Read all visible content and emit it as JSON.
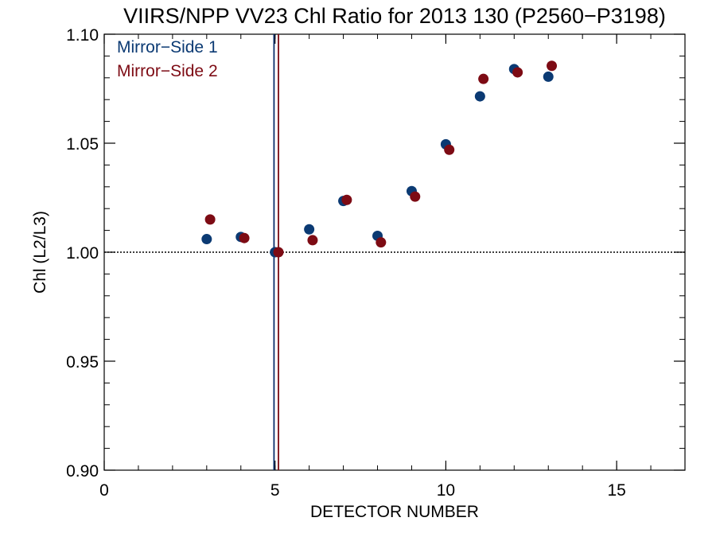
{
  "chart_data": {
    "type": "scatter",
    "title": "VIIRS/NPP VV23 Chl Ratio for 2013 130 (P2560−P3198)",
    "xlabel": "DETECTOR NUMBER",
    "ylabel": "Chl (L2/L3)",
    "xlim": [
      0,
      17
    ],
    "ylim": [
      0.9,
      1.1
    ],
    "xticks": [
      0,
      5,
      10,
      15
    ],
    "xtick_labels": [
      "0",
      "5",
      "10",
      "15"
    ],
    "xminor_step": 1,
    "yticks": [
      0.9,
      0.95,
      1.0,
      1.05,
      1.1
    ],
    "ytick_labels": [
      "0.90",
      "0.95",
      "1.00",
      "1.05",
      "1.10"
    ],
    "yminor_step": 0.01,
    "reference_line_y": 1.0,
    "vertical_lines": [
      {
        "x": 4.97,
        "color": "#0b2f6b"
      },
      {
        "x": 5.1,
        "color": "#7a0a12"
      }
    ],
    "legend_position": "top-left",
    "series": [
      {
        "name": "Mirror−Side 1",
        "color": "#0b3a73",
        "x": [
          3,
          4,
          5,
          6,
          7,
          8,
          9,
          10,
          11,
          12,
          13
        ],
        "y": [
          1.006,
          1.007,
          1.0,
          1.0105,
          1.0235,
          1.0075,
          1.028,
          1.0495,
          1.0715,
          1.084,
          1.0805
        ]
      },
      {
        "name": "Mirror−Side 2",
        "color": "#7d0b14",
        "x": [
          3.1,
          4.1,
          5.1,
          6.1,
          7.1,
          8.1,
          9.1,
          10.1,
          11.1,
          12.1,
          13.1
        ],
        "y": [
          1.015,
          1.0065,
          1.0,
          1.0055,
          1.024,
          1.0045,
          1.0255,
          1.047,
          1.0795,
          1.0825,
          1.0855
        ]
      }
    ]
  }
}
